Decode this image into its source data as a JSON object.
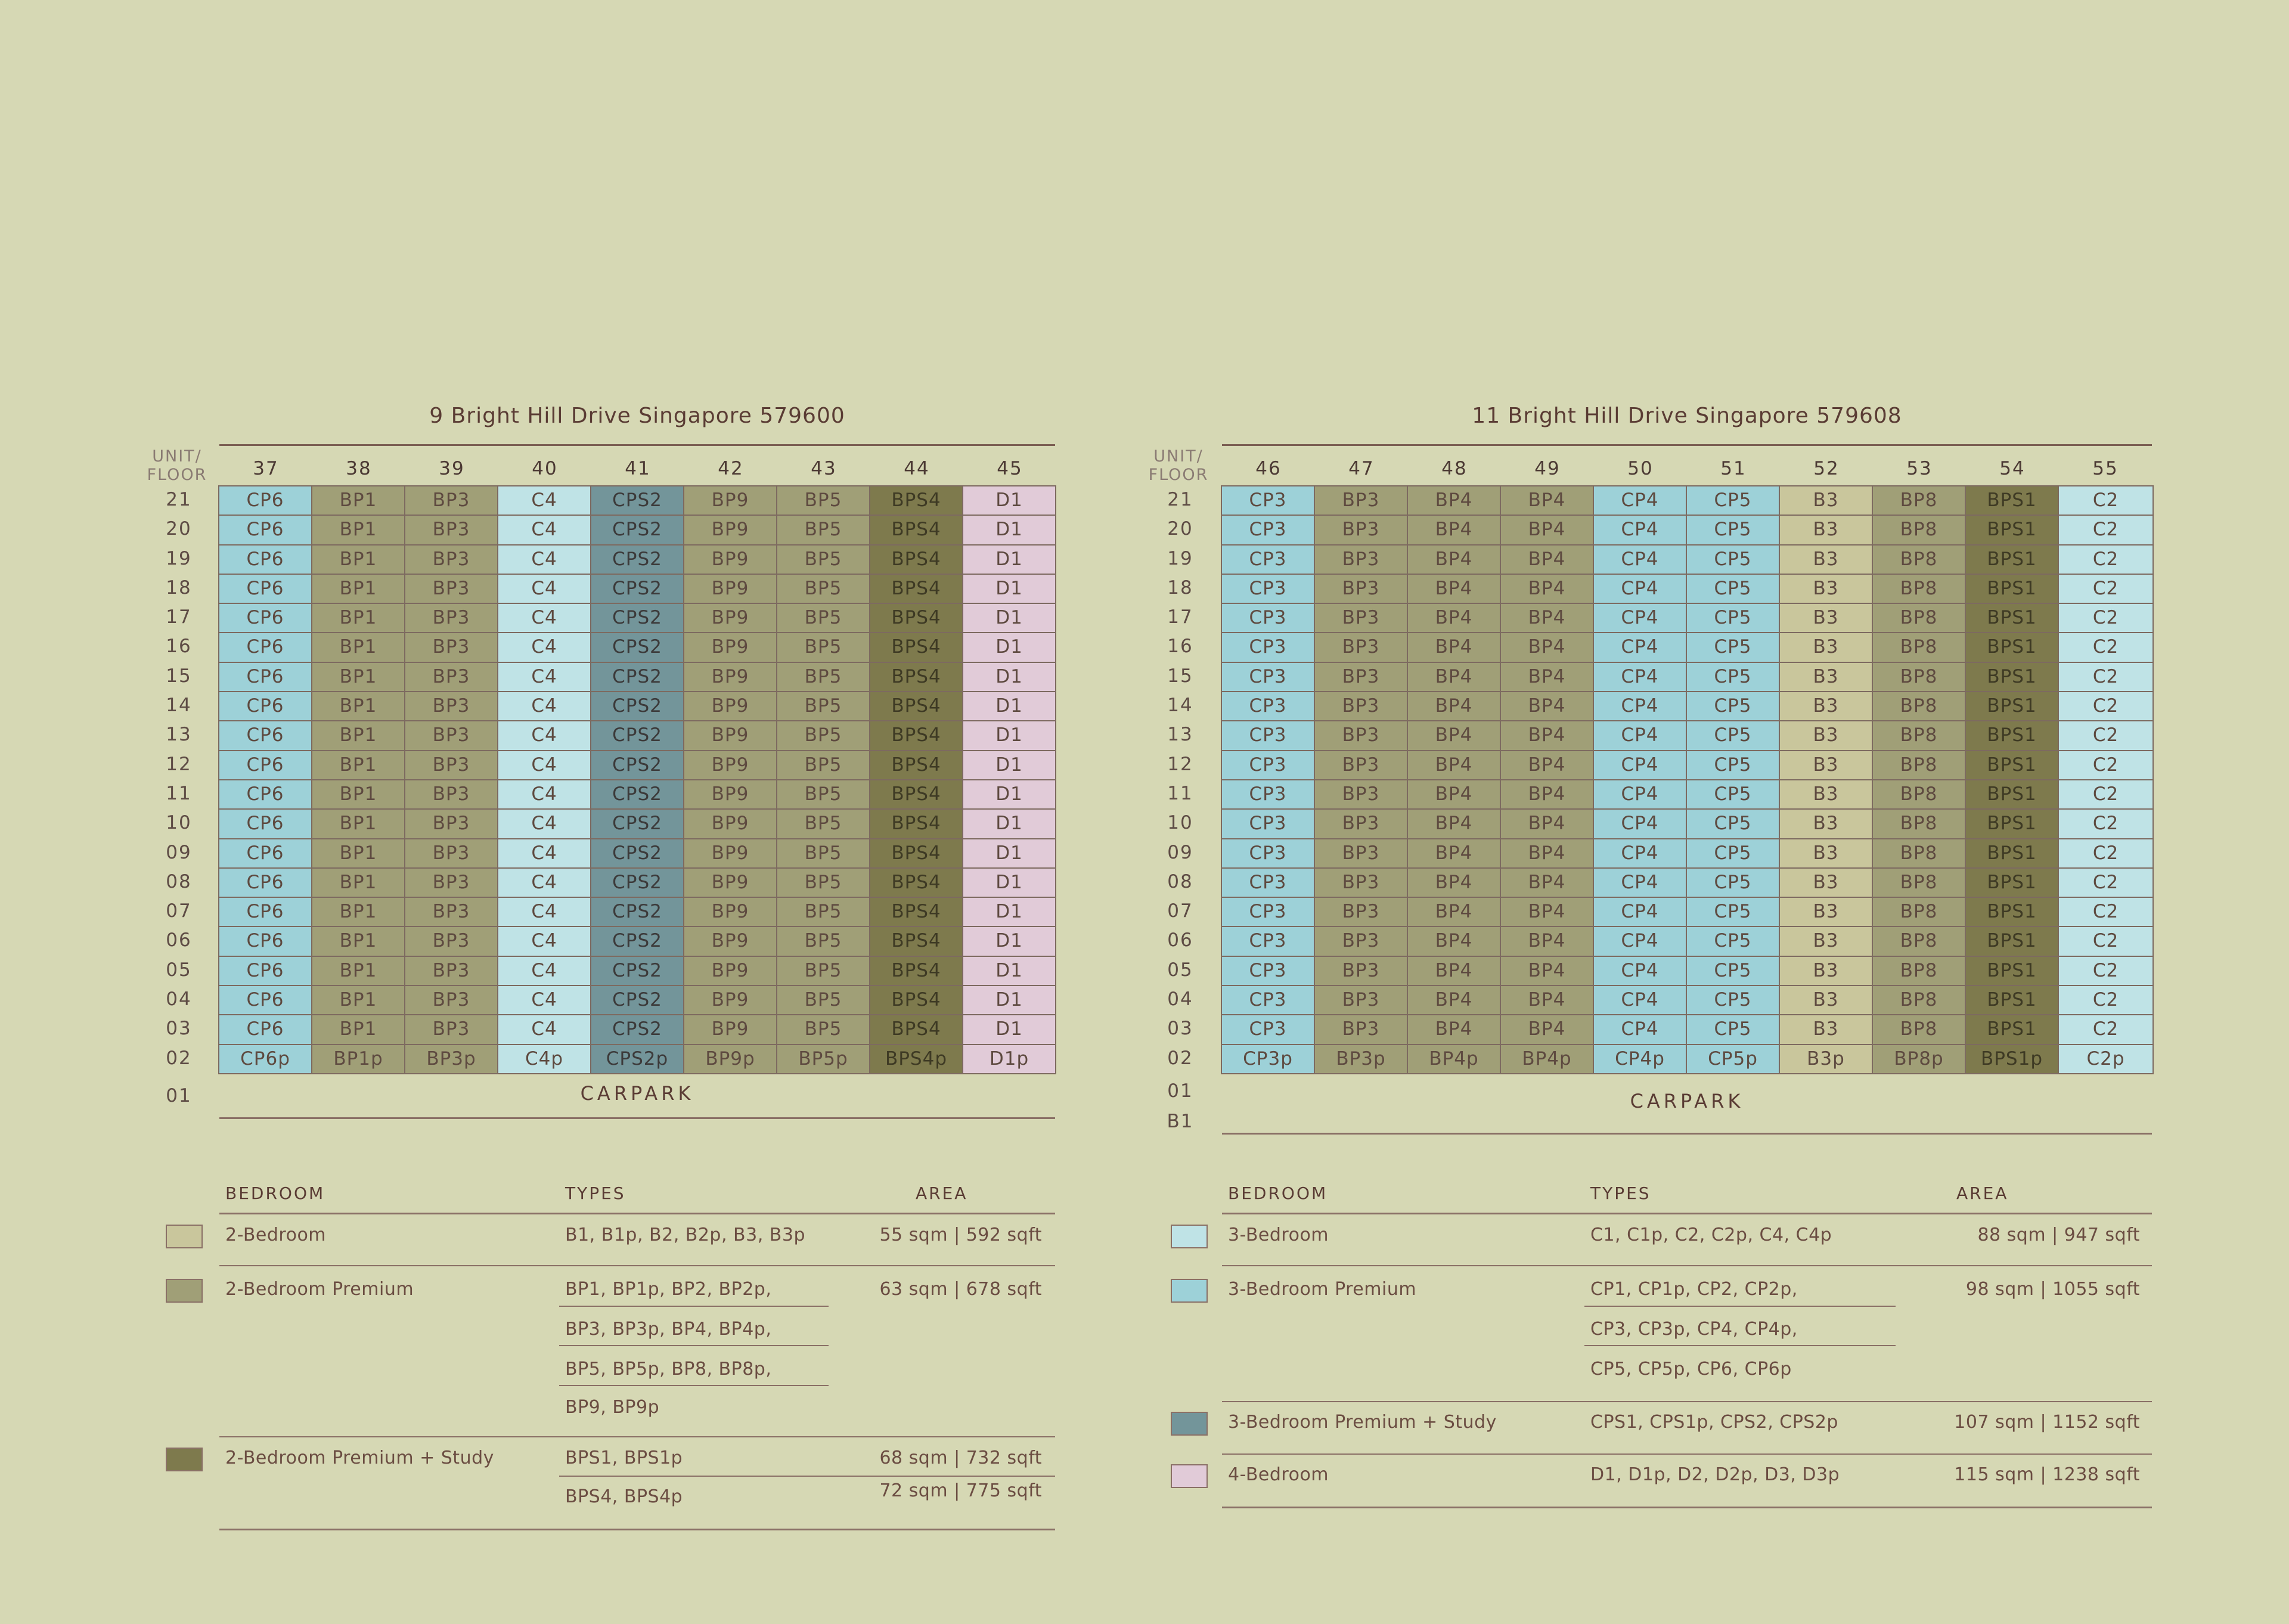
{
  "left": {
    "title": "9 Bright Hill Drive Singapore 579600",
    "unit_floor_label": [
      "UNIT/",
      "FLOOR"
    ],
    "units": [
      "37",
      "38",
      "39",
      "40",
      "41",
      "42",
      "43",
      "44",
      "45"
    ],
    "unit_types": [
      "CP6",
      "BP1",
      "BP3",
      "C4",
      "CPS2",
      "BP9",
      "BP5",
      "BPS4",
      "D1"
    ],
    "unit_categories": [
      "cp",
      "bp",
      "bp",
      "c",
      "cps",
      "bp",
      "bp",
      "bps",
      "d"
    ],
    "floor_02_types": [
      "CP6p",
      "BP1p",
      "BP3p",
      "C4p",
      "CPS2p",
      "BP9p",
      "BP5p",
      "BPS4p",
      "D1p"
    ],
    "floors": [
      "21",
      "20",
      "19",
      "18",
      "17",
      "16",
      "15",
      "14",
      "13",
      "12",
      "11",
      "10",
      "09",
      "08",
      "07",
      "06",
      "05",
      "04",
      "03",
      "02"
    ],
    "below_floors": [
      "01"
    ],
    "carpark": "CARPARK",
    "legend": {
      "headers": {
        "bedroom": "BEDROOM",
        "types": "TYPES",
        "area": "AREA"
      },
      "rows": [
        {
          "bedroom": "2-Bedroom",
          "swatch": "#c9c69c",
          "types": [
            "B1, B1p, B2, B2p, B3, B3p"
          ],
          "areas": [
            "55 sqm  |  592 sqft"
          ]
        },
        {
          "bedroom": "2-Bedroom Premium",
          "swatch": "#a09f77",
          "types": [
            "BP1, BP1p, BP2, BP2p,",
            "BP3, BP3p, BP4, BP4p,",
            "BP5, BP5p, BP8, BP8p,",
            "BP9, BP9p"
          ],
          "areas": [
            "63 sqm  |  678 sqft"
          ]
        },
        {
          "bedroom": "2-Bedroom Premium + Study",
          "swatch": "#7e7a4d",
          "types": [
            "BPS1, BPS1p",
            "BPS4, BPS4p"
          ],
          "areas": [
            "68 sqm  |  732 sqft",
            "72 sqm  |  775 sqft"
          ]
        }
      ]
    }
  },
  "right": {
    "title": "11 Bright Hill Drive Singapore 579608",
    "unit_floor_label": [
      "UNIT/",
      "FLOOR"
    ],
    "units": [
      "46",
      "47",
      "48",
      "49",
      "50",
      "51",
      "52",
      "53",
      "54",
      "55"
    ],
    "unit_types": [
      "CP3",
      "BP3",
      "BP4",
      "BP4",
      "CP4",
      "CP5",
      "B3",
      "BP8",
      "BPS1",
      "C2"
    ],
    "unit_categories": [
      "cp",
      "bp",
      "bp",
      "bp",
      "cp",
      "cp",
      "b",
      "bp",
      "bps",
      "c"
    ],
    "floor_02_types": [
      "CP3p",
      "BP3p",
      "BP4p",
      "BP4p",
      "CP4p",
      "CP5p",
      "B3p",
      "BP8p",
      "BPS1p",
      "C2p"
    ],
    "floors": [
      "21",
      "20",
      "19",
      "18",
      "17",
      "16",
      "15",
      "14",
      "13",
      "12",
      "11",
      "10",
      "09",
      "08",
      "07",
      "06",
      "05",
      "04",
      "03",
      "02"
    ],
    "below_floors": [
      "01",
      "B1"
    ],
    "carpark": "CARPARK",
    "legend": {
      "headers": {
        "bedroom": "BEDROOM",
        "types": "TYPES",
        "area": "AREA"
      },
      "rows": [
        {
          "bedroom": "3-Bedroom",
          "swatch": "#bfe3e6",
          "types": [
            "C1, C1p, C2, C2p, C4, C4p"
          ],
          "areas": [
            "88 sqm  |  947 sqft"
          ]
        },
        {
          "bedroom": "3-Bedroom Premium",
          "swatch": "#9dd1d8",
          "types": [
            "CP1, CP1p, CP2, CP2p,",
            "CP3, CP3p, CP4, CP4p,",
            "CP5, CP5p, CP6, CP6p"
          ],
          "areas": [
            "98 sqm  |  1055 sqft"
          ]
        },
        {
          "bedroom": "3-Bedroom Premium + Study",
          "swatch": "#73959a",
          "types": [
            "CPS1, CPS1p, CPS2, CPS2p"
          ],
          "areas": [
            "107 sqm  |  1152 sqft"
          ]
        },
        {
          "bedroom": "4-Bedroom",
          "swatch": "#e1cbd8",
          "types": [
            "D1, D1p, D2, D2p, D3, D3p"
          ],
          "areas": [
            "115 sqm  |  1238 sqft"
          ]
        }
      ]
    }
  }
}
